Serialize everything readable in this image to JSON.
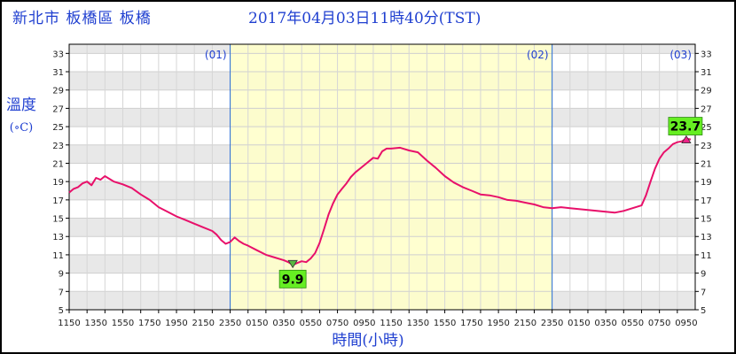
{
  "header": {
    "location": "新北市 板橋區 板橋",
    "timestamp": "2017年04月03日11時40分(TST)"
  },
  "axis": {
    "ylabel": "溫度",
    "yunit": "(∘C)",
    "xlabel": "時間(小時)"
  },
  "colors": {
    "line": "#e8106a",
    "day_fill": "#ffffc8",
    "grid_band": "#e8e8e8",
    "text_blue": "#1f3fd0",
    "annotation_bg": "#66ee22",
    "marker": "#ee2288"
  },
  "chart_data": {
    "type": "line",
    "ylim": [
      5,
      34
    ],
    "yticks": [
      5,
      7,
      9,
      11,
      13,
      15,
      17,
      19,
      21,
      23,
      25,
      27,
      29,
      31,
      33
    ],
    "xlim": [
      0,
      70
    ],
    "x_unit": "hours since 11:50 on 2017-04-01",
    "xtick_positions": [
      0,
      2,
      4,
      6,
      8,
      10,
      12,
      14,
      16,
      18,
      20,
      22,
      24,
      26,
      28,
      30,
      32,
      34,
      36,
      38,
      40,
      42,
      44,
      46,
      48,
      50,
      52,
      54,
      56,
      58,
      60,
      62,
      64,
      66,
      68
    ],
    "xtick_labels": [
      "1150",
      "1350",
      "1550",
      "1750",
      "1950",
      "2150",
      "2350",
      "0150",
      "0350",
      "0550",
      "0750",
      "0950",
      "1150",
      "1350",
      "1550",
      "1750",
      "1950",
      "2150",
      "2350",
      "0150",
      "0350",
      "0550",
      "0750",
      "0950"
    ],
    "xtick_label_positions": [
      0,
      3,
      6,
      9,
      12,
      15,
      18,
      21,
      24,
      27,
      30,
      33,
      36,
      39,
      42,
      45,
      48,
      51,
      54,
      57,
      60,
      63,
      66,
      69
    ],
    "day_markers": [
      {
        "x": 18,
        "label": "(01)"
      },
      {
        "x": 54,
        "label": "(02)"
      },
      {
        "x": 72.2,
        "label": "(03)"
      }
    ],
    "day_band": [
      18,
      54
    ],
    "series": [
      {
        "name": "溫度",
        "x": [
          0,
          0.5,
          1,
          1.5,
          2,
          2.5,
          3,
          3.5,
          4,
          5,
          6,
          7,
          8,
          9,
          10,
          11,
          12,
          13,
          14,
          15,
          16,
          16.5,
          17,
          17.5,
          18,
          18.5,
          19,
          19.5,
          20,
          21,
          22,
          23,
          24,
          24.5,
          25,
          25.5,
          26,
          26.5,
          27,
          27.5,
          28,
          28.5,
          29,
          29.5,
          30,
          30.5,
          31,
          31.5,
          32,
          33,
          34,
          34.5,
          35,
          35.5,
          36,
          37,
          38,
          39,
          40,
          41,
          42,
          43,
          44,
          45,
          46,
          47,
          48,
          49,
          50,
          51,
          52,
          53,
          54,
          55,
          56,
          57,
          58,
          59,
          60,
          61,
          62,
          63,
          64,
          64.5,
          65,
          65.5,
          66,
          66.5,
          67,
          67.5,
          68,
          68.5,
          69,
          69.5
        ],
        "values": [
          17.8,
          18.2,
          18.4,
          18.8,
          19.0,
          18.6,
          19.4,
          19.2,
          19.6,
          19.0,
          18.7,
          18.3,
          17.6,
          17.0,
          16.2,
          15.7,
          15.2,
          14.8,
          14.4,
          14.0,
          13.6,
          13.2,
          12.6,
          12.2,
          12.4,
          12.9,
          12.5,
          12.2,
          12.0,
          11.5,
          11.0,
          10.7,
          10.4,
          10.2,
          9.9,
          10.1,
          10.3,
          10.2,
          10.6,
          11.2,
          12.3,
          13.8,
          15.4,
          16.6,
          17.6,
          18.2,
          18.8,
          19.5,
          20.0,
          20.8,
          21.6,
          21.5,
          22.3,
          22.6,
          22.6,
          22.7,
          22.4,
          22.2,
          21.3,
          20.5,
          19.6,
          18.9,
          18.4,
          18.0,
          17.6,
          17.5,
          17.3,
          17.0,
          16.9,
          16.7,
          16.5,
          16.2,
          16.1,
          16.2,
          16.1,
          16.0,
          15.9,
          15.8,
          15.7,
          15.6,
          15.8,
          16.1,
          16.4,
          17.5,
          19.0,
          20.4,
          21.5,
          22.2,
          22.6,
          23.1,
          23.3,
          23.4,
          23.7,
          23.6
        ]
      }
    ],
    "annotations": [
      {
        "label": "9.9",
        "x": 25,
        "y": 9.9,
        "kind": "min"
      },
      {
        "label": "23.7",
        "x": 69,
        "y": 23.7,
        "kind": "max"
      }
    ]
  }
}
